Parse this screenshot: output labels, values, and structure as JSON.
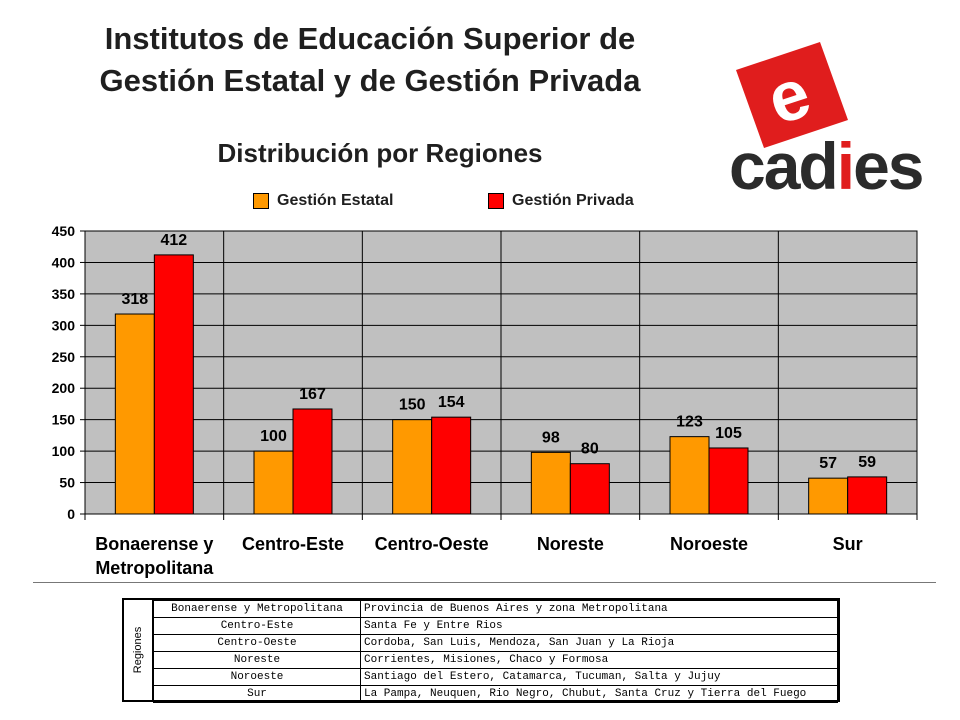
{
  "header": {
    "title_line1": "Institutos de Educación Superior de",
    "title_line2": "Gestión Estatal y de Gestión Privada"
  },
  "logo": {
    "text_pre": "cad",
    "text_i": "i",
    "text_post": "es",
    "mark": "e",
    "colors": {
      "red": "#e01d1d",
      "dark": "#2b2b2b"
    }
  },
  "chart_data": {
    "type": "bar",
    "title": "Distribución por Regiones",
    "categories": [
      [
        "Bonaerense y",
        "Metropolitana"
      ],
      [
        "Centro-Este"
      ],
      [
        "Centro-Oeste"
      ],
      [
        "Noreste"
      ],
      [
        "Noroeste"
      ],
      [
        "Sur"
      ]
    ],
    "series": [
      {
        "name": "Gestión Estatal",
        "values": [
          318,
          100,
          150,
          98,
          123,
          57
        ],
        "color": "#FF9900"
      },
      {
        "name": "Gestión Privada",
        "values": [
          412,
          167,
          154,
          80,
          105,
          59
        ],
        "color": "#FF0000"
      }
    ],
    "ylim": [
      0,
      450
    ],
    "yticks": [
      0,
      50,
      100,
      150,
      200,
      250,
      300,
      350,
      400,
      450
    ],
    "grid": true,
    "plot_background": "#C0C0C0",
    "legend_position": "top"
  },
  "regions_table": {
    "side_label": "Regiones",
    "rows": [
      [
        "Bonaerense y Metropolitana",
        "Provincia de Buenos Aires y zona Metropolitana"
      ],
      [
        "Centro-Este",
        "Santa Fe y Entre Rios"
      ],
      [
        "Centro-Oeste",
        "Cordoba, San Luis, Mendoza, San Juan y La Rioja"
      ],
      [
        "Noreste",
        "Corrientes, Misiones, Chaco y Formosa"
      ],
      [
        "Noroeste",
        "Santiago del Estero, Catamarca, Tucuman, Salta y Jujuy"
      ],
      [
        "Sur",
        "La Pampa, Neuquen, Rio Negro, Chubut, Santa Cruz y Tierra del Fuego"
      ]
    ]
  }
}
